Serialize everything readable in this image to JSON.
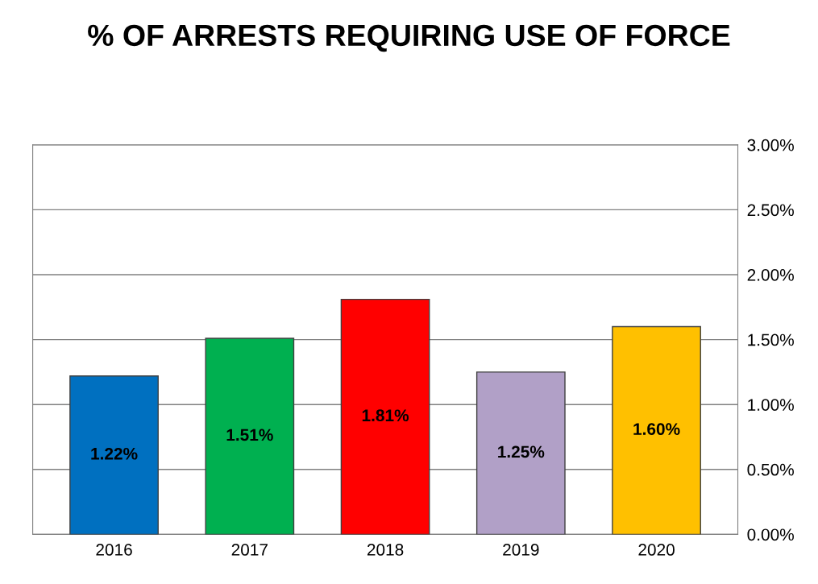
{
  "chart_data": {
    "type": "bar",
    "title": "% OF ARRESTS REQUIRING USE OF FORCE",
    "categories": [
      "2016",
      "2017",
      "2018",
      "2019",
      "2020"
    ],
    "values": [
      1.22,
      1.51,
      1.81,
      1.25,
      1.6
    ],
    "colors": [
      "#0070c0",
      "#00b050",
      "#ff0000",
      "#b1a0c7",
      "#ffc000"
    ],
    "value_labels": [
      "1.22%",
      "1.51%",
      "1.81%",
      "1.25%",
      "1.60%"
    ],
    "ylim": [
      0,
      3
    ],
    "yticks": [
      {
        "value": 0,
        "label": "0.00%"
      },
      {
        "value": 0.5,
        "label": "0.50%"
      },
      {
        "value": 1,
        "label": "1.00%"
      },
      {
        "value": 1.5,
        "label": "1.50%"
      },
      {
        "value": 2,
        "label": "2.00%"
      },
      {
        "value": 2.5,
        "label": "2.50%"
      },
      {
        "value": 3,
        "label": "3.00%"
      }
    ],
    "grid": "y",
    "legend": false
  }
}
